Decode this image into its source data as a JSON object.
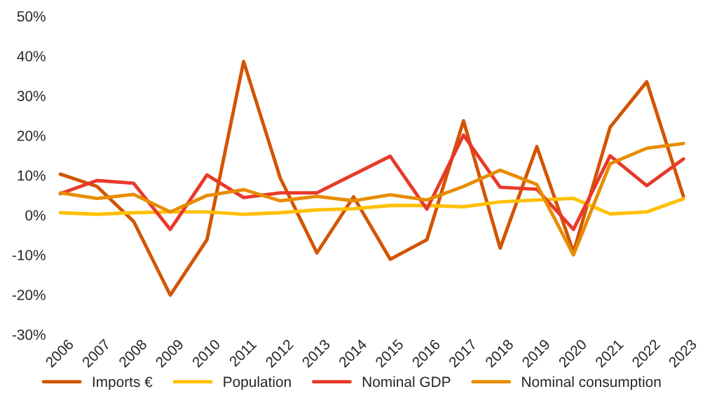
{
  "chart_data": {
    "type": "line",
    "categories": [
      "2006",
      "2007",
      "2008",
      "2009",
      "2010",
      "2011",
      "2012",
      "2013",
      "2014",
      "2015",
      "2016",
      "2017",
      "2018",
      "2019",
      "2020",
      "2021",
      "2022",
      "2023"
    ],
    "series": [
      {
        "name": "Imports €",
        "color": "#d35400",
        "values": [
          10.3,
          7.2,
          -1.6,
          -20.1,
          -6.2,
          38.6,
          9.3,
          -9.5,
          4.6,
          -11.1,
          -6.2,
          23.7,
          -8.3,
          17.2,
          -9.3,
          22.1,
          33.5,
          4.7
        ]
      },
      {
        "name": "Population",
        "color": "#ffc000",
        "values": [
          0.6,
          0.2,
          0.6,
          0.8,
          0.8,
          0.2,
          0.6,
          1.3,
          1.6,
          2.4,
          2.4,
          2.1,
          3.3,
          3.8,
          4.2,
          0.3,
          0.8,
          4.1
        ]
      },
      {
        "name": "Nominal GDP",
        "color": "#e8392a",
        "values": [
          5.4,
          8.7,
          8.0,
          -3.6,
          10.1,
          4.4,
          5.6,
          5.6,
          10.2,
          14.8,
          1.5,
          20.1,
          7.0,
          6.5,
          -3.6,
          14.9,
          7.4,
          14.1
        ]
      },
      {
        "name": "Nominal consumption",
        "color": "#e88c00",
        "values": [
          5.6,
          4.2,
          5.2,
          0.8,
          4.9,
          6.4,
          3.6,
          4.7,
          3.6,
          5.1,
          3.8,
          7.2,
          11.3,
          7.7,
          -10.0,
          12.9,
          16.8,
          18.0
        ]
      }
    ],
    "ylim": [
      -30,
      50
    ],
    "yticks": [
      {
        "value": -30,
        "label": "-30%"
      },
      {
        "value": -20,
        "label": "-20%"
      },
      {
        "value": -10,
        "label": "-10%"
      },
      {
        "value": 0,
        "label": "0%"
      },
      {
        "value": 10,
        "label": "10%"
      },
      {
        "value": 20,
        "label": "20%"
      },
      {
        "value": 30,
        "label": "30%"
      },
      {
        "value": 40,
        "label": "40%"
      },
      {
        "value": 50,
        "label": "50%"
      }
    ],
    "grid": false,
    "legend": "bottom"
  }
}
